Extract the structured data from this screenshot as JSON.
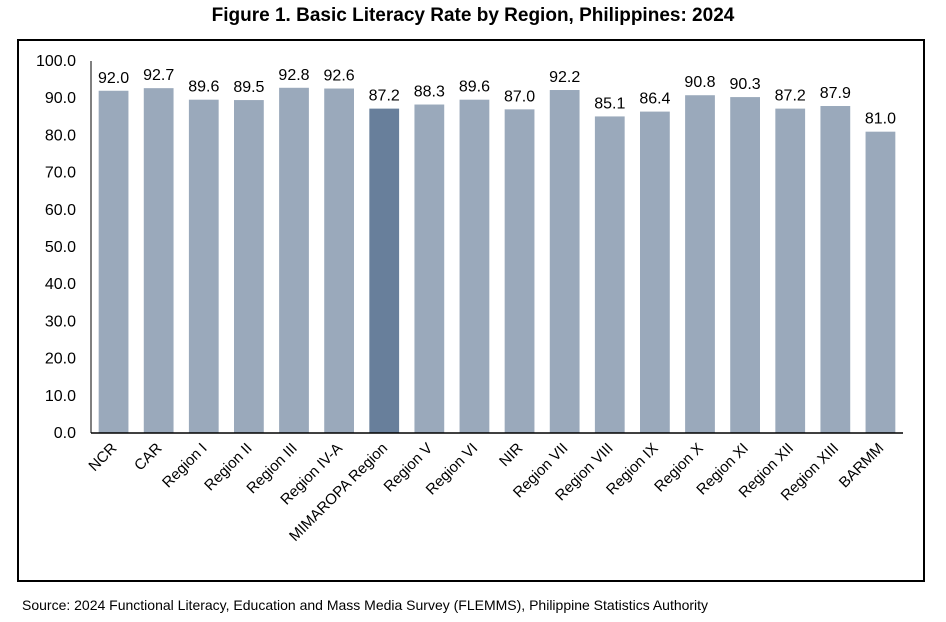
{
  "title": "Figure 1. Basic Literacy Rate by Region, Philippines: 2024",
  "source": "Source: 2024 Functional Literacy, Education and Mass Media Survey (FLEMMS), Philippine Statistics Authority",
  "colors": {
    "bar": "#9aa9bb",
    "highlight": "#687f9b",
    "axis": "#000000"
  },
  "chart_data": {
    "type": "bar",
    "title": "Figure 1. Basic Literacy Rate by Region, Philippines: 2024",
    "xlabel": "",
    "ylabel": "",
    "ylim": [
      0,
      100
    ],
    "ytick_step": 10,
    "ytick_labels": [
      "0.0",
      "10.0",
      "20.0",
      "30.0",
      "40.0",
      "50.0",
      "60.0",
      "70.0",
      "80.0",
      "90.0",
      "100.0"
    ],
    "grid": false,
    "legend": "none",
    "highlight_category": "MIMAROPA Region",
    "categories": [
      "NCR",
      "CAR",
      "Region I",
      "Region II",
      "Region III",
      "Region IV-A",
      "MIMAROPA Region",
      "Region V",
      "Region VI",
      "NIR",
      "Region VII",
      "Region VIII",
      "Region IX",
      "Region X",
      "Region XI",
      "Region XII",
      "Region XIII",
      "BARMM"
    ],
    "values": [
      92.0,
      92.7,
      89.6,
      89.5,
      92.8,
      92.6,
      87.2,
      88.3,
      89.6,
      87.0,
      92.2,
      85.1,
      86.4,
      90.8,
      90.3,
      87.2,
      87.9,
      81.0
    ],
    "value_labels": [
      "92.0",
      "92.7",
      "89.6",
      "89.5",
      "92.8",
      "92.6",
      "87.2",
      "88.3",
      "89.6",
      "87.0",
      "92.2",
      "85.1",
      "86.4",
      "90.8",
      "90.3",
      "87.2",
      "87.9",
      "81.0"
    ]
  }
}
